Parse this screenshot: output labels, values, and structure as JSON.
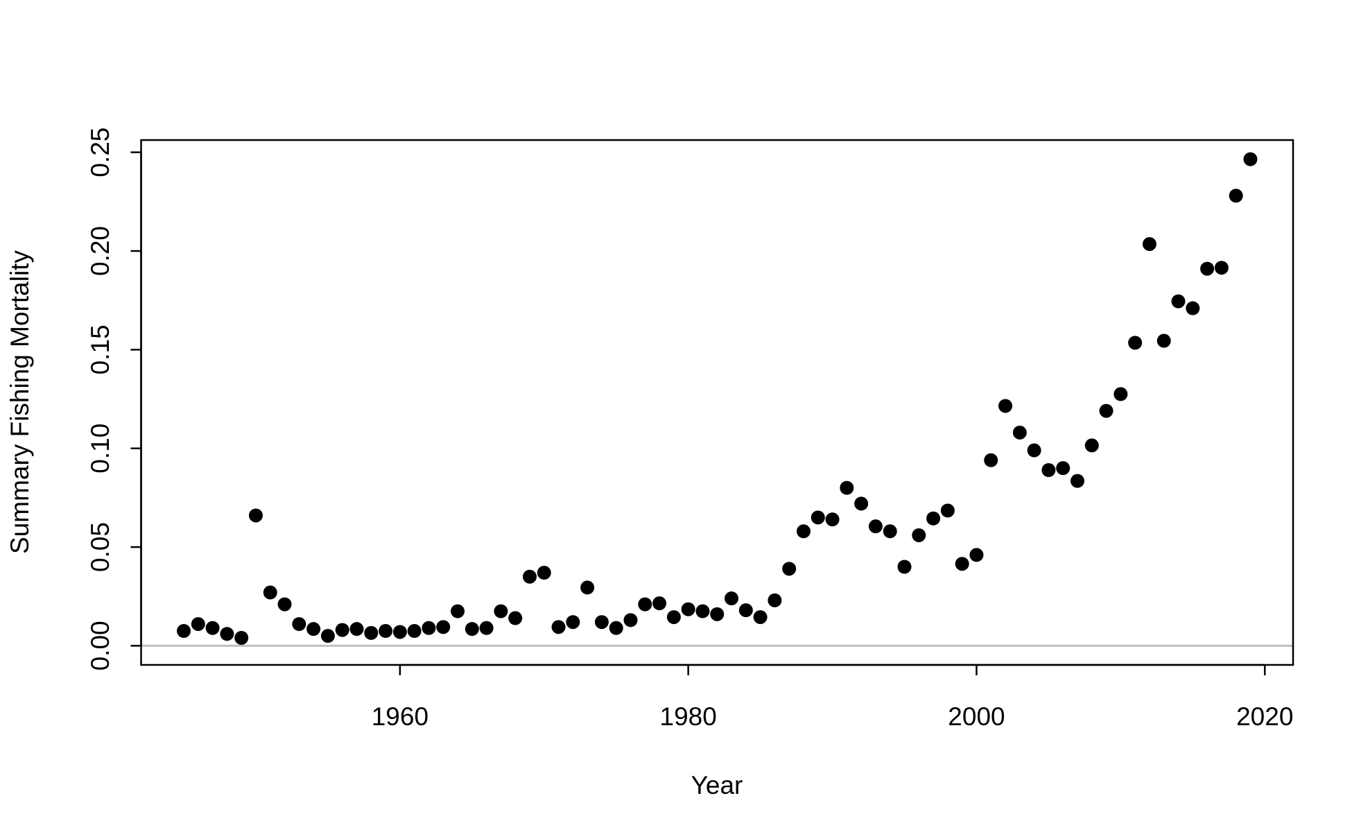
{
  "chart_data": {
    "type": "scatter",
    "xlabel": "Year",
    "ylabel": "Summary Fishing Mortality",
    "x": [
      1945,
      1946,
      1947,
      1948,
      1949,
      1950,
      1951,
      1952,
      1953,
      1954,
      1955,
      1956,
      1957,
      1958,
      1959,
      1960,
      1961,
      1962,
      1963,
      1964,
      1965,
      1966,
      1967,
      1968,
      1969,
      1970,
      1971,
      1972,
      1973,
      1974,
      1975,
      1976,
      1977,
      1978,
      1979,
      1980,
      1981,
      1982,
      1983,
      1984,
      1985,
      1986,
      1987,
      1988,
      1989,
      1990,
      1991,
      1992,
      1993,
      1994,
      1995,
      1996,
      1997,
      1998,
      1999,
      2000,
      2001,
      2002,
      2003,
      2004,
      2005,
      2006,
      2007,
      2008,
      2009,
      2010,
      2011,
      2012,
      2013,
      2014,
      2015,
      2016,
      2017,
      2018,
      2019
    ],
    "values": [
      0.0075,
      0.011,
      0.009,
      0.006,
      0.004,
      0.066,
      0.027,
      0.021,
      0.011,
      0.0085,
      0.005,
      0.008,
      0.0085,
      0.0065,
      0.0075,
      0.007,
      0.0075,
      0.009,
      0.0095,
      0.0175,
      0.0085,
      0.009,
      0.0175,
      0.014,
      0.035,
      0.037,
      0.0095,
      0.012,
      0.0295,
      0.012,
      0.009,
      0.013,
      0.021,
      0.0215,
      0.0145,
      0.0185,
      0.0175,
      0.016,
      0.024,
      0.018,
      0.0145,
      0.023,
      0.039,
      0.058,
      0.065,
      0.064,
      0.08,
      0.072,
      0.0605,
      0.058,
      0.04,
      0.056,
      0.0645,
      0.0685,
      0.0415,
      0.046,
      0.094,
      0.1215,
      0.108,
      0.099,
      0.089,
      0.09,
      0.0835,
      0.1015,
      0.119,
      0.1275,
      0.1535,
      0.2035,
      0.1545,
      0.1745,
      0.171,
      0.191,
      0.1915,
      0.228,
      0.2465
    ],
    "color": "#000000",
    "xlim": [
      1942.04,
      2021.96
    ],
    "xticks": [
      1960,
      1980,
      2000,
      2020
    ],
    "ylim": [
      -0.0097,
      0.2562
    ],
    "yticks": [
      {
        "value": 0,
        "label": "0.00"
      },
      {
        "value": 0.05,
        "label": "0.05"
      },
      {
        "value": 0.1,
        "label": "0.10"
      },
      {
        "value": 0.15,
        "label": "0.15"
      },
      {
        "value": 0.2,
        "label": "0.20"
      },
      {
        "value": 0.25,
        "label": "0.25"
      }
    ],
    "hline": 0,
    "hline_color": "#bebebe"
  }
}
